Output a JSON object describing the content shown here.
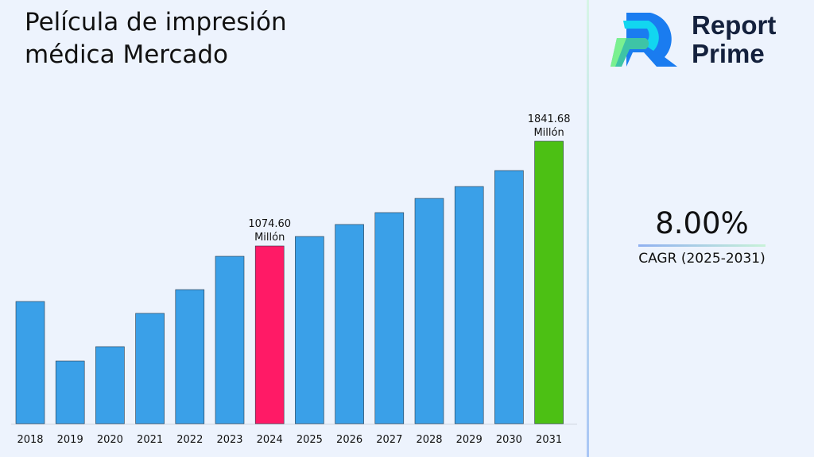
{
  "title": "Película de impresión médica Mercado",
  "brand": {
    "name_line1": "Report",
    "name_line2": "Prime"
  },
  "cagr": {
    "value": "8.00%",
    "label": "CAGR (2025-2031)"
  },
  "chart_data": {
    "type": "bar",
    "title": "Película de impresión médica Mercado",
    "categories": [
      "2018",
      "2019",
      "2020",
      "2021",
      "2022",
      "2023",
      "2024",
      "2025",
      "2026",
      "2027",
      "2028",
      "2029",
      "2030",
      "2031"
    ],
    "values": [
      668,
      232,
      337,
      581,
      755,
      999,
      1074.6,
      1144,
      1232,
      1319,
      1423,
      1510,
      1627,
      1841.68
    ],
    "colors": {
      "default": "#3aa0e8",
      "highlight_2024": "#ff1a66",
      "highlight_2031": "#4cc014"
    },
    "data_labels": [
      {
        "category": "2024",
        "text": "1074.60",
        "unit": "Millón"
      },
      {
        "category": "2031",
        "text": "1841.68",
        "unit": "Millón"
      }
    ],
    "grid": false,
    "legend": "none"
  }
}
